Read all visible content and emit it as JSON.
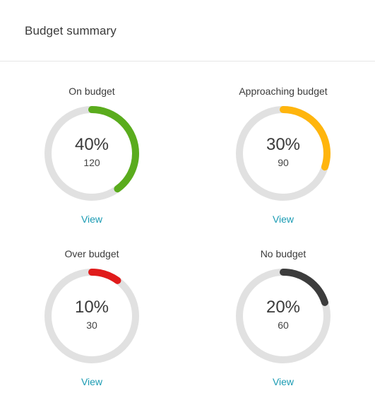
{
  "header": {
    "title": "Budget summary"
  },
  "cards": [
    {
      "label": "On budget",
      "percent_text": "40%",
      "count": "120",
      "fraction": 0.4,
      "color": "#5aac1d",
      "link": "View"
    },
    {
      "label": "Approaching budget",
      "percent_text": "30%",
      "count": "90",
      "fraction": 0.3,
      "color": "#ffb50d",
      "link": "View"
    },
    {
      "label": "Over budget",
      "percent_text": "10%",
      "count": "30",
      "fraction": 0.1,
      "color": "#e01b1b",
      "link": "View"
    },
    {
      "label": "No budget",
      "percent_text": "20%",
      "count": "60",
      "fraction": 0.2,
      "color": "#3c3c3c",
      "link": "View"
    }
  ],
  "colors": {
    "track": "#e1e1e1",
    "link": "#1a9bb3"
  }
}
